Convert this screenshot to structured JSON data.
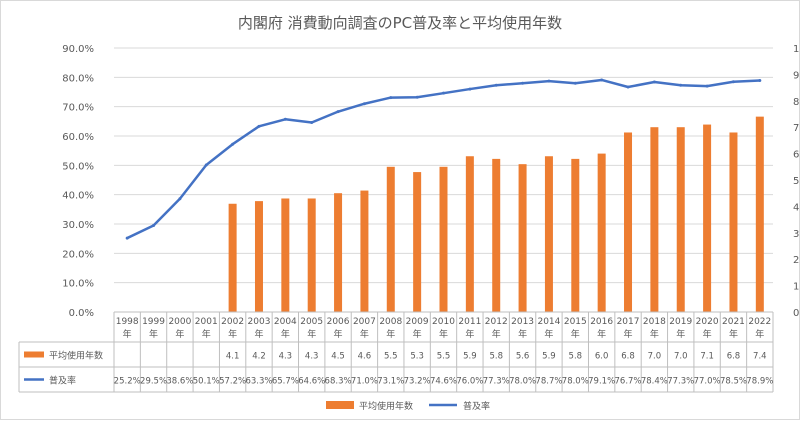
{
  "chart_data": {
    "type": "bar+line",
    "title": "内閣府 消費動向調査のPC普及率と平均使用年数",
    "categories": [
      "1998年",
      "1999年",
      "2000年",
      "2001年",
      "2002年",
      "2003年",
      "2004年",
      "2005年",
      "2006年",
      "2007年",
      "2008年",
      "2009年",
      "2010年",
      "2011年",
      "2012年",
      "2013年",
      "2014年",
      "2015年",
      "2016年",
      "2017年",
      "2018年",
      "2019年",
      "2020年",
      "2021年",
      "2022年"
    ],
    "category_years": [
      "1998",
      "1999",
      "2000",
      "2001",
      "2002",
      "2003",
      "2004",
      "2005",
      "2006",
      "2007",
      "2008",
      "2009",
      "2010",
      "2011",
      "2012",
      "2013",
      "2014",
      "2015",
      "2016",
      "2017",
      "2018",
      "2019",
      "2020",
      "2021",
      "2022"
    ],
    "category_suffix": "年",
    "series": [
      {
        "name": "平均使用年数",
        "type": "bar",
        "axis": "right",
        "color": "#ED7D31",
        "values": [
          null,
          null,
          null,
          null,
          4.1,
          4.2,
          4.3,
          4.3,
          4.5,
          4.6,
          5.5,
          5.3,
          5.5,
          5.9,
          5.8,
          5.6,
          5.9,
          5.8,
          6.0,
          6.8,
          7.0,
          7.0,
          7.1,
          6.8,
          7.4
        ]
      },
      {
        "name": "普及率",
        "type": "line",
        "axis": "left",
        "color": "#4472C4",
        "values": [
          25.2,
          29.5,
          38.6,
          50.1,
          57.2,
          63.3,
          65.7,
          64.6,
          68.3,
          71.0,
          73.1,
          73.2,
          74.6,
          76.0,
          77.3,
          78.0,
          78.7,
          78.0,
          79.1,
          76.7,
          78.4,
          77.3,
          77.0,
          78.5,
          78.9
        ]
      }
    ],
    "table_rows": [
      {
        "label": "平均使用年数",
        "cells": [
          "",
          "",
          "",
          "",
          "4.1",
          "4.2",
          "4.3",
          "4.3",
          "4.5",
          "4.6",
          "5.5",
          "5.3",
          "5.5",
          "5.9",
          "5.8",
          "5.6",
          "5.9",
          "5.8",
          "6.0",
          "6.8",
          "7.0",
          "7.0",
          "7.1",
          "6.8",
          "7.4"
        ]
      },
      {
        "label": "普及率",
        "cells": [
          "25.2%",
          "29.5%",
          "38.6%",
          "50.1%",
          "57.2%",
          "63.3%",
          "65.7%",
          "64.6%",
          "68.3%",
          "71.0%",
          "73.1%",
          "73.2%",
          "74.6%",
          "76.0%",
          "77.3%",
          "78.0%",
          "78.7%",
          "78.0%",
          "79.1%",
          "76.7%",
          "78.4%",
          "77.3%",
          "77.0%",
          "78.5%",
          "78.9%"
        ]
      }
    ],
    "left_axis": {
      "min": 0,
      "max": 90,
      "step": 10,
      "ticks": [
        "0.0%",
        "10.0%",
        "20.0%",
        "30.0%",
        "40.0%",
        "50.0%",
        "60.0%",
        "70.0%",
        "80.0%",
        "90.0%"
      ]
    },
    "right_axis": {
      "min": 0,
      "max": 10,
      "step": 1,
      "ticks": [
        "0",
        "1",
        "2",
        "3",
        "4",
        "5",
        "6",
        "7",
        "8",
        "9",
        "10"
      ]
    },
    "grid": true,
    "legend": {
      "placement": "bottom",
      "entries": [
        "平均使用年数",
        "普及率"
      ]
    }
  }
}
